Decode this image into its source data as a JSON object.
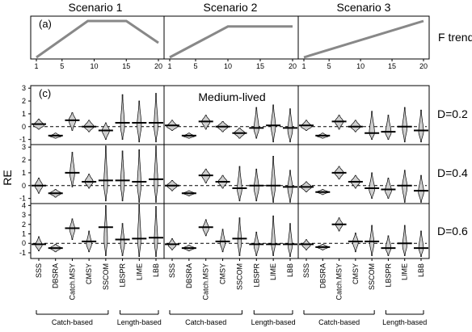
{
  "chart_data": {
    "type": "violin",
    "panel_a": {
      "label": "(a)",
      "right_label": "F trend",
      "x_ticks": [
        1,
        5,
        10,
        15,
        20
      ],
      "scenarios": [
        {
          "title": "Scenario 1",
          "x": [
            1,
            9,
            15,
            20
          ],
          "y": [
            0.0,
            1.0,
            1.0,
            0.4
          ]
        },
        {
          "title": "Scenario 2",
          "x": [
            1,
            10,
            20
          ],
          "y": [
            0.0,
            0.85,
            0.85
          ]
        },
        {
          "title": "Scenario 3",
          "x": [
            1,
            20
          ],
          "y": [
            0.0,
            1.0
          ]
        }
      ]
    },
    "panel_c": {
      "label": "(c)",
      "annotation": "Medium-lived",
      "ylabel": "RE",
      "methods": [
        "SSS",
        "DBSRA",
        "Catch.MSY",
        "CMSY",
        "SSCOM",
        "LBSPR",
        "LIME",
        "LBB"
      ],
      "groups": [
        {
          "label": "Catch-based",
          "methods": [
            "SSS",
            "DBSRA",
            "Catch.MSY",
            "CMSY",
            "SSCOM"
          ]
        },
        {
          "label": "Length-based",
          "methods": [
            "LBSPR",
            "LIME",
            "LBB"
          ]
        }
      ],
      "rows": [
        {
          "label": "D=0.2",
          "ylim": [
            -1.4,
            3.2
          ],
          "yticks": [
            -1,
            0,
            1,
            2,
            3
          ],
          "scenarios": [
            {
              "medians": [
                0.2,
                -0.7,
                0.5,
                0.0,
                -0.3,
                0.3,
                0.3,
                0.3
              ],
              "lo": [
                -0.2,
                -0.9,
                -0.3,
                -0.4,
                -1.0,
                -1.0,
                -1.2,
                -1.2
              ],
              "hi": [
                0.6,
                -0.5,
                1.1,
                0.5,
                0.3,
                2.5,
                2.0,
                2.6
              ],
              "mode": [
                0.1,
                -0.75,
                0.5,
                0.0,
                -0.3,
                0.0,
                0.1,
                0.0
              ]
            },
            {
              "medians": [
                0.1,
                -0.7,
                0.4,
                0.0,
                -0.5,
                -0.1,
                0.1,
                -0.1
              ],
              "lo": [
                -0.3,
                -0.9,
                -0.2,
                -0.4,
                -0.9,
                -0.9,
                -1.2,
                -1.2
              ],
              "hi": [
                0.5,
                -0.5,
                0.9,
                0.4,
                -0.1,
                1.5,
                1.7,
                1.4
              ],
              "mode": [
                0.0,
                -0.75,
                0.4,
                0.0,
                -0.5,
                -0.2,
                0.0,
                -0.3
              ]
            },
            {
              "medians": [
                0.1,
                -0.7,
                0.4,
                0.0,
                -0.5,
                -0.4,
                0.0,
                -0.3
              ],
              "lo": [
                -0.3,
                -0.9,
                -0.2,
                -0.4,
                -1.0,
                -1.0,
                -1.2,
                -1.2
              ],
              "hi": [
                0.5,
                -0.5,
                0.9,
                0.5,
                1.2,
                0.9,
                1.5,
                1.3
              ],
              "mode": [
                0.0,
                -0.75,
                0.4,
                0.0,
                -0.5,
                -0.5,
                -0.1,
                -0.4
              ]
            }
          ]
        },
        {
          "label": "D=0.4",
          "ylim": [
            -1.4,
            3.2
          ],
          "yticks": [
            -1,
            0,
            1,
            2,
            3
          ],
          "scenarios": [
            {
              "medians": [
                0.0,
                -0.6,
                1.0,
                0.3,
                0.4,
                0.4,
                0.3,
                0.5
              ],
              "lo": [
                -0.6,
                -0.9,
                -0.1,
                -0.2,
                -1.2,
                -1.2,
                -1.3,
                -1.3
              ],
              "hi": [
                0.6,
                -0.3,
                2.6,
                0.9,
                3.1,
                2.7,
                2.8,
                3.1
              ],
              "mode": [
                0.0,
                -0.6,
                0.9,
                0.3,
                0.0,
                0.1,
                0.0,
                0.2
              ]
            },
            {
              "medians": [
                0.0,
                -0.6,
                0.8,
                0.3,
                -0.2,
                0.0,
                0.0,
                -0.1
              ],
              "lo": [
                -0.4,
                -0.8,
                0.2,
                -0.2,
                -1.2,
                -1.2,
                -1.3,
                -1.3
              ],
              "hi": [
                0.4,
                -0.4,
                1.3,
                0.8,
                1.5,
                1.3,
                2.3,
                1.2
              ],
              "mode": [
                0.0,
                -0.6,
                0.8,
                0.3,
                -0.3,
                -0.2,
                -0.1,
                -0.2
              ]
            },
            {
              "medians": [
                -0.1,
                -0.5,
                1.0,
                0.3,
                -0.2,
                -0.3,
                0.0,
                -0.4
              ],
              "lo": [
                -0.5,
                -0.7,
                0.5,
                -0.2,
                -1.0,
                -1.0,
                -1.3,
                -1.3
              ],
              "hi": [
                0.3,
                -0.3,
                1.5,
                0.8,
                1.0,
                0.6,
                1.2,
                0.8
              ],
              "mode": [
                -0.1,
                -0.5,
                1.0,
                0.3,
                -0.3,
                -0.4,
                -0.1,
                -0.5
              ]
            }
          ]
        },
        {
          "label": "D=0.6",
          "ylim": [
            -1.6,
            4.2
          ],
          "yticks": [
            -1,
            0,
            1,
            2,
            3,
            4
          ],
          "scenarios": [
            {
              "medians": [
                -0.1,
                -0.5,
                1.6,
                0.2,
                1.7,
                0.4,
                0.5,
                0.6
              ],
              "lo": [
                -0.8,
                -0.9,
                0.4,
                -0.9,
                -1.3,
                -1.3,
                -1.4,
                -1.4
              ],
              "hi": [
                0.7,
                -0.1,
                2.6,
                1.3,
                4.0,
                2.1,
                4.1,
                3.9
              ],
              "mode": [
                -0.2,
                -0.5,
                1.5,
                -0.1,
                0.3,
                -0.1,
                0.3,
                0.2
              ]
            },
            {
              "medians": [
                -0.1,
                -0.5,
                1.7,
                0.2,
                0.5,
                -0.1,
                -0.1,
                -0.1
              ],
              "lo": [
                -0.7,
                -0.8,
                0.8,
                -0.9,
                -1.3,
                -1.3,
                -1.3,
                -1.4
              ],
              "hi": [
                0.5,
                -0.2,
                2.5,
                1.5,
                2.7,
                1.2,
                2.9,
                2.1
              ],
              "mode": [
                -0.2,
                -0.5,
                1.6,
                0.0,
                0.1,
                -0.3,
                -0.1,
                -0.3
              ]
            },
            {
              "medians": [
                -0.1,
                -0.4,
                2.0,
                0.2,
                0.2,
                -0.5,
                0.0,
                -0.5
              ],
              "lo": [
                -0.7,
                -0.7,
                1.3,
                -0.9,
                -1.3,
                -1.3,
                -1.3,
                -1.4
              ],
              "hi": [
                0.4,
                -0.1,
                2.7,
                1.1,
                1.9,
                0.8,
                1.9,
                1.3
              ],
              "mode": [
                -0.2,
                -0.4,
                2.0,
                0.1,
                0.0,
                -0.5,
                -0.3,
                -0.5
              ]
            }
          ]
        }
      ]
    }
  }
}
